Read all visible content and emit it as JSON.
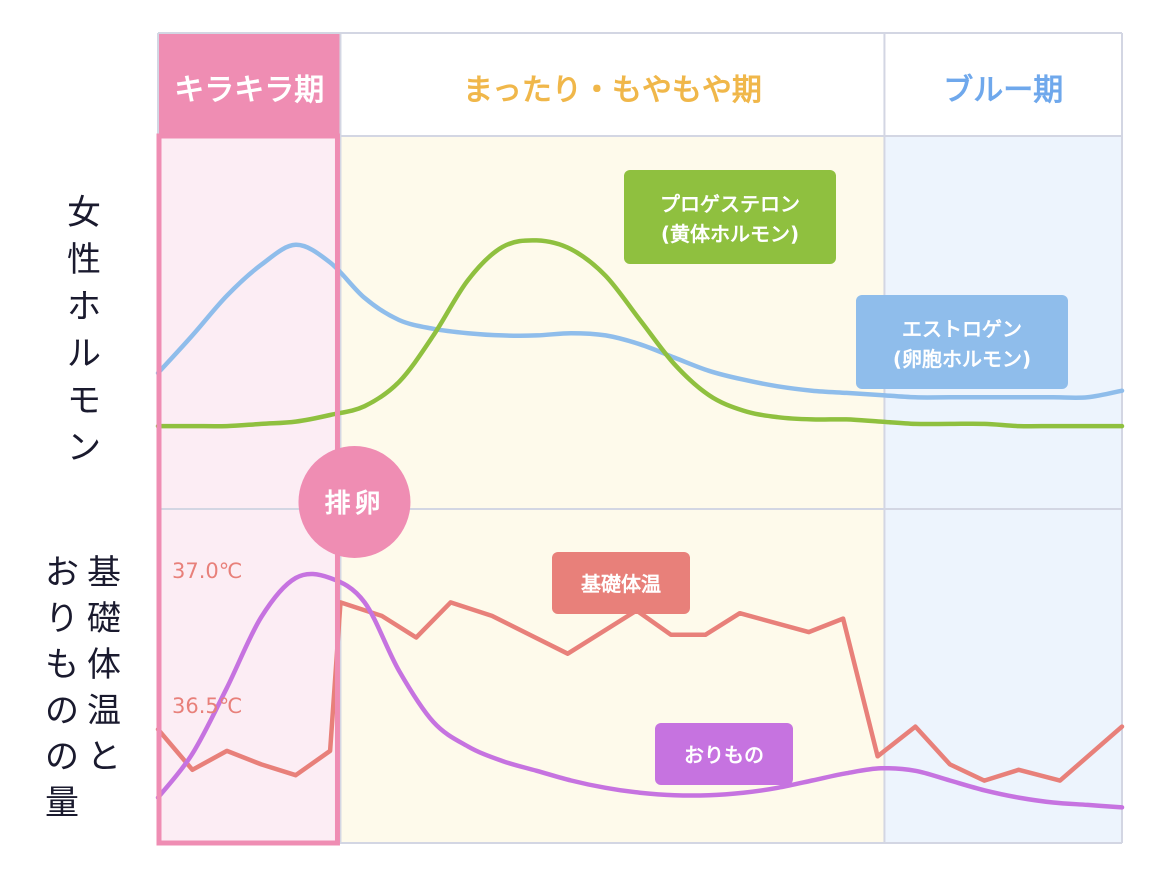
{
  "phases": [
    {
      "label": "キラキラ期",
      "label_color": "#ffffff",
      "header_color": "#ef8db3",
      "band_color": "#fcedf4"
    },
    {
      "label": "まったり・もやもや期",
      "label_color": "#f0b74a",
      "header_color": "#ffffff",
      "band_color": "#fefaeb"
    },
    {
      "label": "ブルー期",
      "label_color": "#6fa8ec",
      "header_color": "#ffffff",
      "band_color": "#edf4fd"
    }
  ],
  "left_labels": {
    "hormone": [
      "女",
      "性",
      "ホ",
      "ル",
      "モ",
      "ン"
    ],
    "bbt": [
      "基",
      "礎",
      "体",
      "温",
      "と"
    ],
    "discharge": [
      "お",
      "り",
      "も",
      "の",
      "の",
      "量"
    ]
  },
  "ovulation_label": "排卵",
  "chart_data": {
    "type": "line",
    "x": [
      0,
      1,
      2,
      3,
      4,
      5,
      6,
      7,
      8,
      9,
      10,
      11,
      12,
      13,
      14,
      15,
      16,
      17,
      18,
      19,
      20,
      21,
      22,
      23,
      24,
      25,
      26,
      27,
      28
    ],
    "regions": [
      {
        "name": "キラキラ期",
        "from": 0,
        "to": 5.3
      },
      {
        "name": "まったり・もやもや期",
        "from": 5.3,
        "to": 21.1
      },
      {
        "name": "ブルー期",
        "from": 21.1,
        "to": 28
      }
    ],
    "ovulation_day": 5.3,
    "hormone_panel": {
      "ylim": [
        0,
        100
      ],
      "series": [
        {
          "name": "エストロゲン",
          "subname": "(卵胞ホルモン)",
          "color": "#8fbdeb",
          "values": [
            38,
            55,
            73,
            87,
            96,
            88,
            72,
            62,
            58,
            56,
            55,
            55,
            56,
            55,
            51,
            45,
            39,
            35,
            32,
            30,
            29,
            28,
            27,
            27,
            27,
            27,
            27,
            27,
            30
          ]
        },
        {
          "name": "プロゲステロン",
          "subname": "(黄体ホルモン)",
          "color": "#8fc03f",
          "values": [
            14,
            14,
            14,
            15,
            16,
            19,
            23,
            34,
            55,
            80,
            95,
            98,
            94,
            82,
            62,
            42,
            28,
            21,
            18,
            17,
            17,
            16,
            15,
            15,
            15,
            14,
            14,
            14,
            14
          ]
        }
      ]
    },
    "lower_panel": {
      "bbt": {
        "name": "基礎体温",
        "unit": "℃",
        "color": "#e8807a",
        "ticks": [
          {
            "value": 37.0,
            "label": "37.0℃"
          },
          {
            "value": 36.5,
            "label": "36.5℃"
          }
        ],
        "points": [
          [
            0,
            36.41
          ],
          [
            1,
            36.26
          ],
          [
            2,
            36.33
          ],
          [
            3,
            36.28
          ],
          [
            4,
            36.24
          ],
          [
            5,
            36.33
          ],
          [
            5.3,
            36.88
          ],
          [
            6.5,
            36.83
          ],
          [
            7.5,
            36.75
          ],
          [
            8.5,
            36.88
          ],
          [
            9.7,
            36.83
          ],
          [
            11.9,
            36.69
          ],
          [
            13.9,
            36.85
          ],
          [
            14.9,
            36.76
          ],
          [
            15.9,
            36.76
          ],
          [
            16.9,
            36.84
          ],
          [
            18.9,
            36.77
          ],
          [
            19.9,
            36.82
          ],
          [
            20.9,
            36.31
          ],
          [
            22,
            36.42
          ],
          [
            23,
            36.28
          ],
          [
            24,
            36.22
          ],
          [
            25,
            36.26
          ],
          [
            26.2,
            36.22
          ],
          [
            28,
            36.42
          ]
        ]
      },
      "discharge": {
        "name": "おりもの",
        "color": "#c673e0",
        "ylim": [
          0,
          100
        ],
        "values": [
          10,
          28,
          55,
          84,
          100,
          100,
          90,
          62,
          41,
          31,
          25,
          21,
          17,
          14,
          12,
          11,
          11,
          12,
          14,
          17,
          20,
          22,
          21,
          17,
          13,
          10,
          8,
          7,
          6
        ]
      }
    }
  }
}
